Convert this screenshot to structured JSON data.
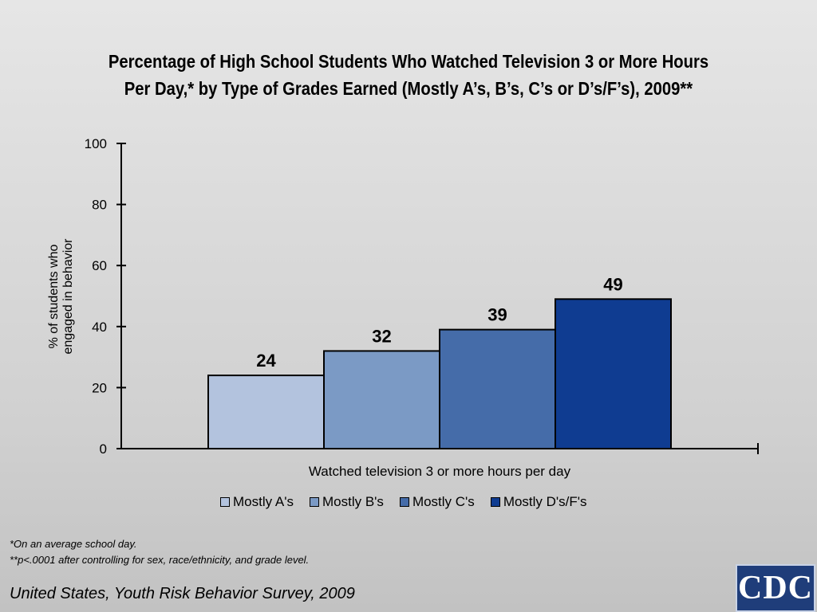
{
  "title_line1": "Percentage of High School Students Who Watched Television 3 or More Hours",
  "title_line2": "Per Day,* by Type of Grades Earned (Mostly A’s, B’s, C’s or D’s/F’s), 2009**",
  "chart_data": {
    "type": "bar",
    "categories": [
      "Watched television 3 or more hours per day"
    ],
    "xlabel": "Watched television 3 or more hours per day",
    "ylabel": [
      "% of students who",
      "engaged in behavior"
    ],
    "ylim": [
      0,
      100
    ],
    "yticks": [
      0,
      20,
      40,
      60,
      80,
      100
    ],
    "grid": false,
    "legend_position": "bottom",
    "series": [
      {
        "name": "Mostly A's",
        "values": [
          24
        ],
        "color": "#b3c3de"
      },
      {
        "name": "Mostly B's",
        "values": [
          32
        ],
        "color": "#7b9ac5"
      },
      {
        "name": "Mostly C's",
        "values": [
          39
        ],
        "color": "#456ca9"
      },
      {
        "name": "Mostly D's/F's",
        "values": [
          49
        ],
        "color": "#0f3c91"
      }
    ]
  },
  "footnote1": "*On an average school day.",
  "footnote2": "**p<.0001 after controlling for sex, race/ethnicity, and grade level.",
  "source": "United States, Youth Risk Behavior Survey, 2009",
  "logo_text": "CDC"
}
